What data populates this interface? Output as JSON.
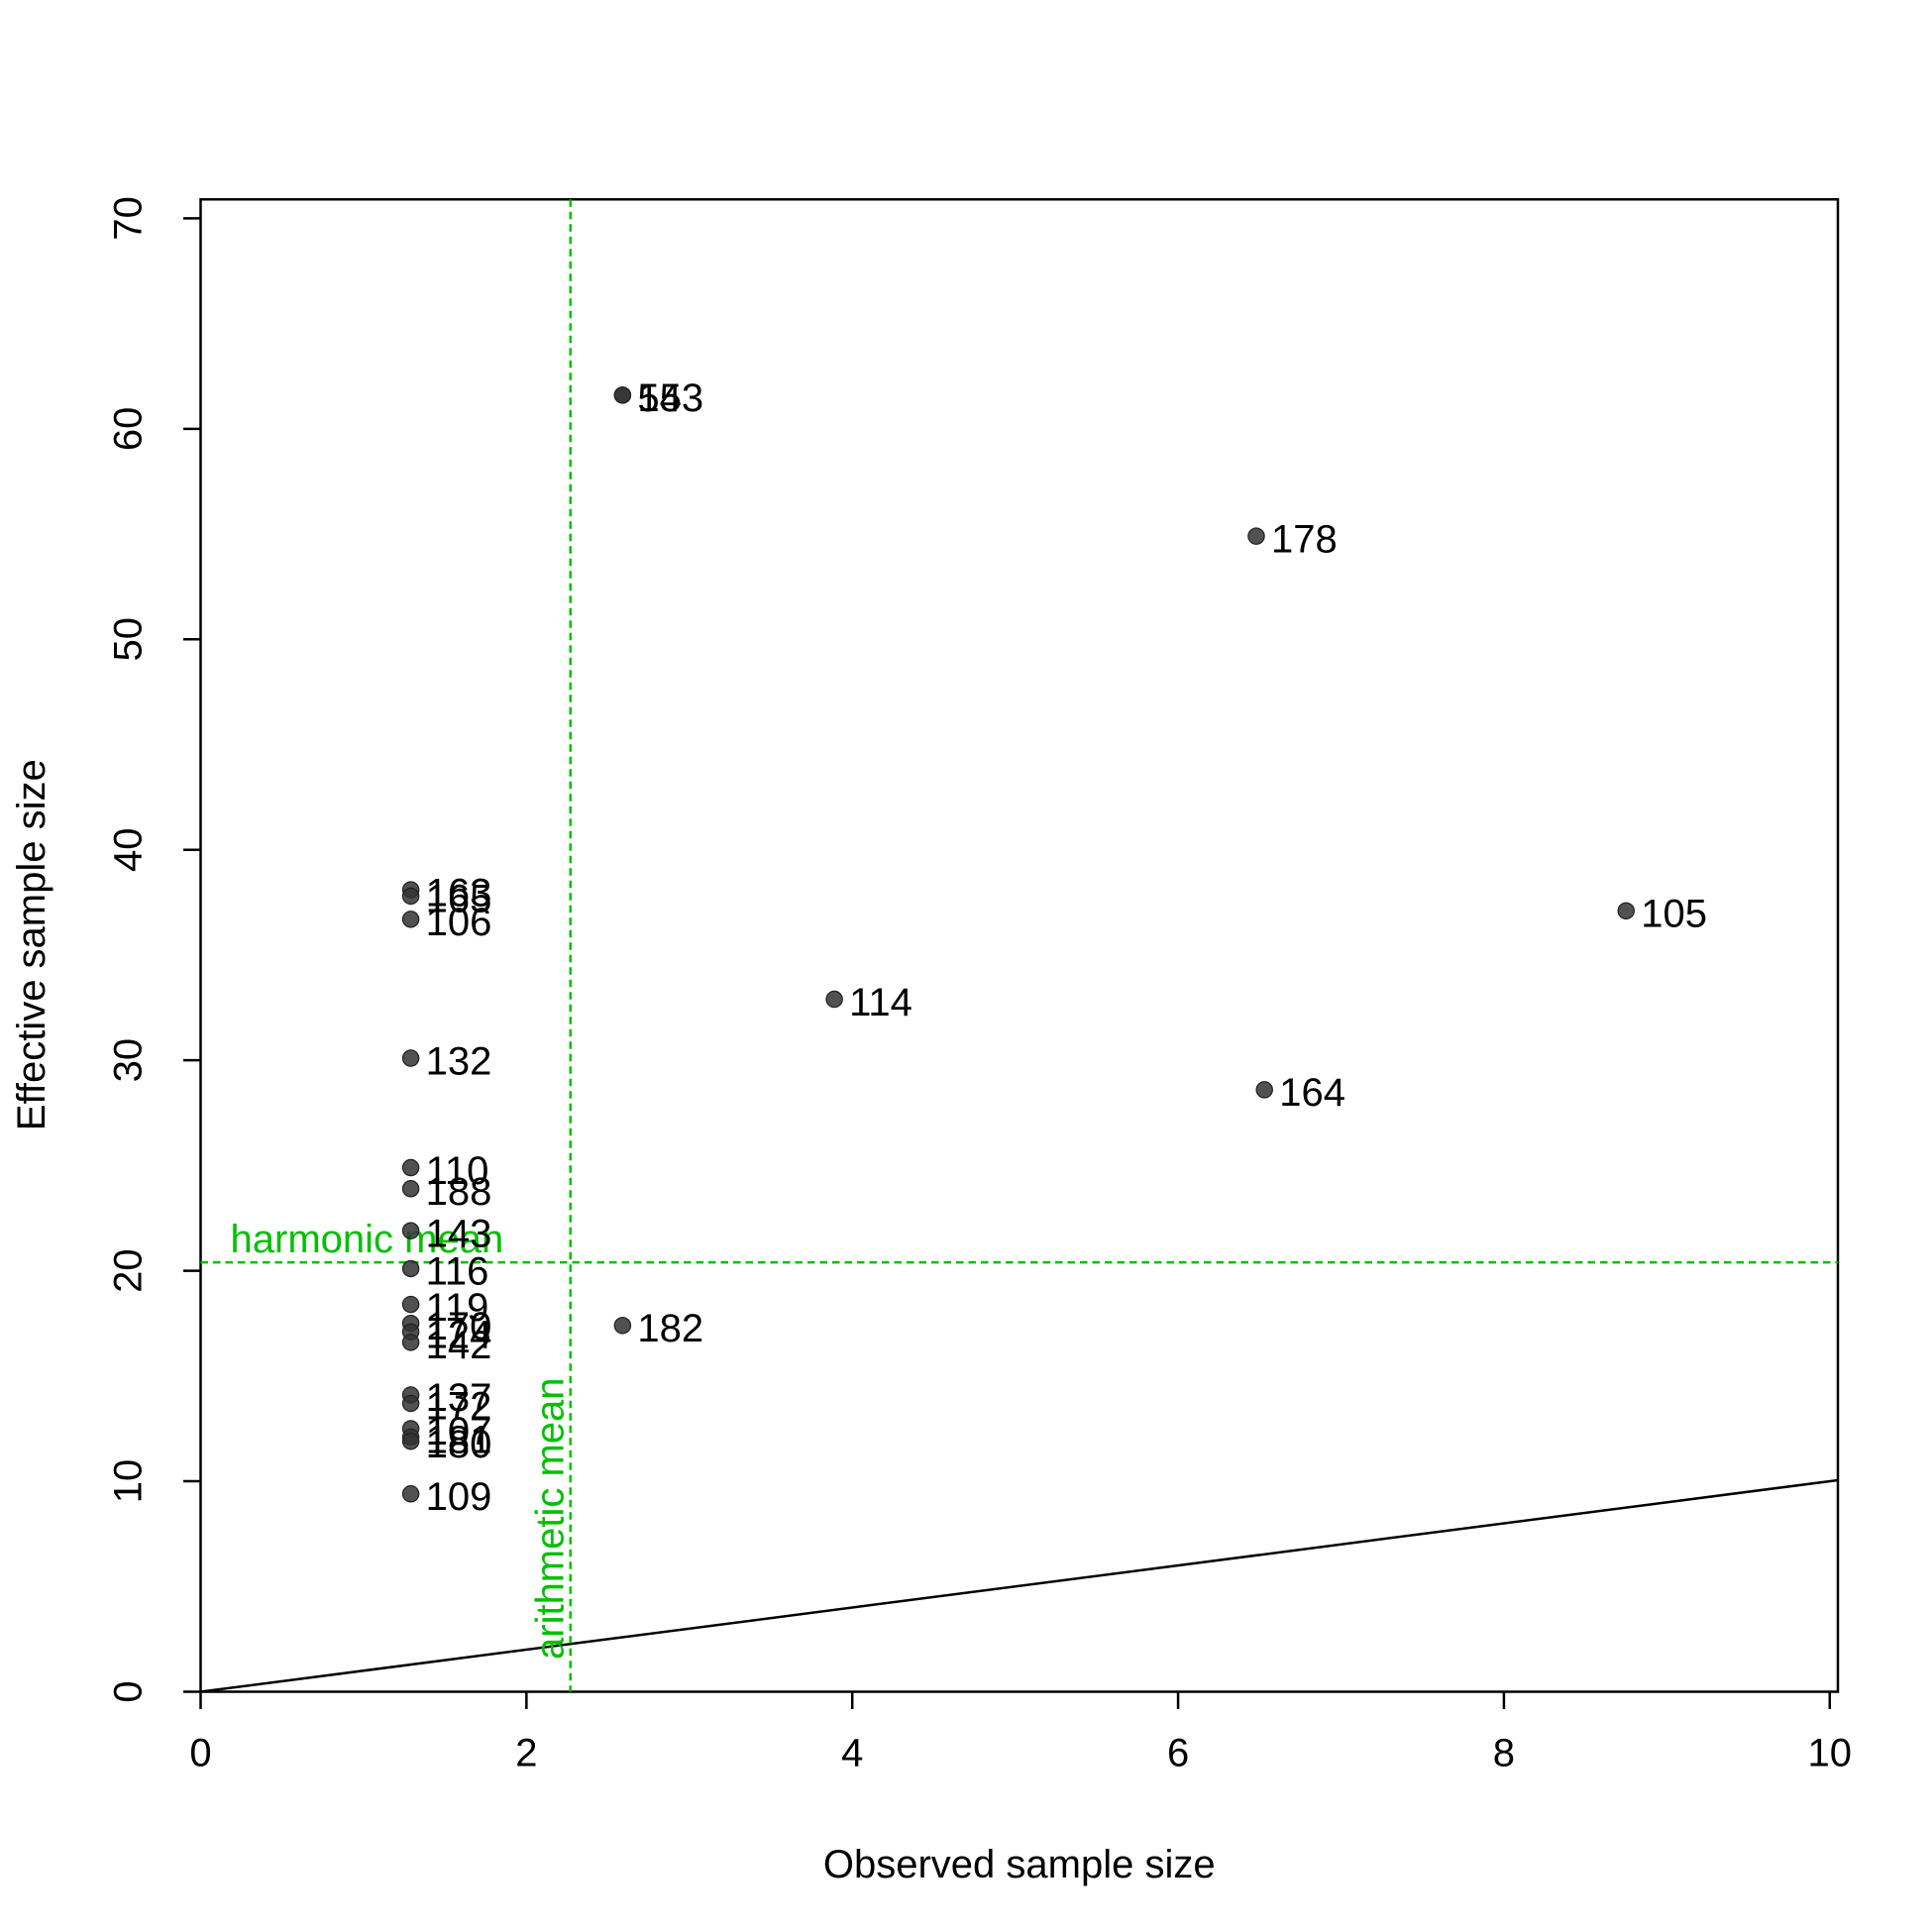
{
  "chart_data": {
    "type": "scatter",
    "x_label": "Observed sample size",
    "y_label": "Effective sample size",
    "xlim": [
      0,
      10.05
    ],
    "ylim": [
      0,
      70.9
    ],
    "xticks": [
      0,
      2,
      4,
      6,
      8,
      10
    ],
    "yticks": [
      0,
      10,
      20,
      30,
      40,
      50,
      60,
      70
    ],
    "color": "#333333",
    "x": [
      2.59,
      2.59,
      6.48,
      8.75,
      3.89,
      6.53,
      2.59,
      1.29,
      1.29,
      1.29,
      1.29,
      1.29,
      1.29,
      1.29,
      1.29,
      1.29,
      1.29,
      1.29,
      1.29,
      1.29,
      1.29,
      1.29,
      1.29,
      1.29,
      1.29
    ],
    "values": [
      61.6,
      61.6,
      54.9,
      37.1,
      32.9,
      28.6,
      17.4,
      38.1,
      37.8,
      36.7,
      30.1,
      24.9,
      23.9,
      21.9,
      20.1,
      18.4,
      17.5,
      17.1,
      16.6,
      14.1,
      13.7,
      12.5,
      12.1,
      11.9,
      9.4
    ],
    "point_labels": [
      "153",
      "54",
      "178",
      "105",
      "114",
      "164",
      "182",
      "163",
      "165",
      "106",
      "132",
      "110",
      "188",
      "143",
      "116",
      "119",
      "170",
      "124",
      "142",
      "137",
      "172",
      "107",
      "181",
      "180",
      "109"
    ],
    "hlines": [
      {
        "value": 20.4,
        "label": "harmonic mean",
        "color": "#00c000"
      }
    ],
    "vlines": [
      {
        "value": 2.27,
        "label": "arithmetic mean",
        "color": "#00c000"
      }
    ],
    "reference_line": {
      "slope": 1,
      "intercept": 0,
      "color": "#000000"
    }
  }
}
